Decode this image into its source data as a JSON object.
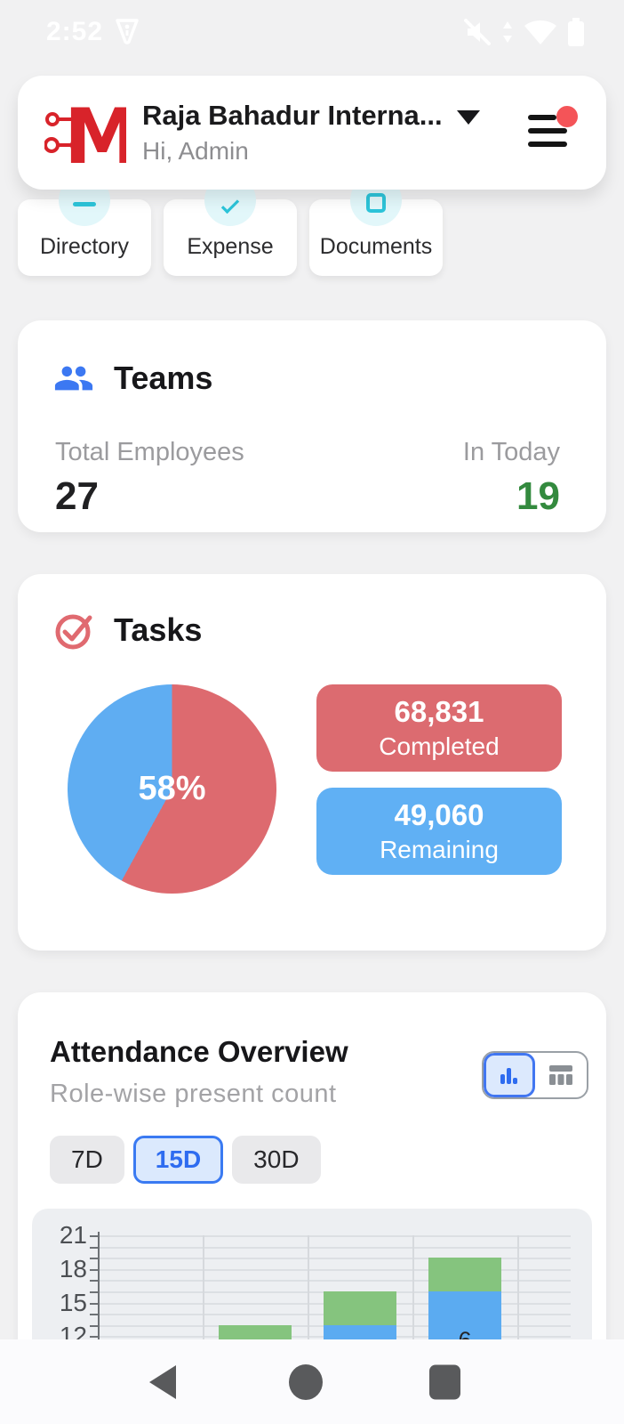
{
  "status_bar": {
    "time": "2:52"
  },
  "header": {
    "company": "Raja Bahadur Interna...",
    "greeting": "Hi, Admin"
  },
  "quick_actions": [
    {
      "label": "Directory"
    },
    {
      "label": "Expense"
    },
    {
      "label": "Documents"
    }
  ],
  "teams": {
    "title": "Teams",
    "total_label": "Total Employees",
    "total_value": "27",
    "in_today_label": "In Today",
    "in_today_value": "19"
  },
  "tasks": {
    "title": "Tasks",
    "completed_value": "68,831",
    "completed_label": "Completed",
    "remaining_value": "49,060",
    "remaining_label": "Remaining"
  },
  "attendance": {
    "title": "Attendance Overview",
    "subtitle": "Role-wise present count",
    "view_toggle": {
      "selected": "bar-chart",
      "options": [
        "bar-chart",
        "table"
      ]
    },
    "periods": [
      {
        "label": "7D",
        "selected": false
      },
      {
        "label": "15D",
        "selected": true
      },
      {
        "label": "30D",
        "selected": false
      }
    ]
  },
  "chart_data": [
    {
      "type": "pie",
      "title": "Tasks",
      "center_label": "58%",
      "slices": [
        {
          "label": "Completed",
          "value": 68831,
          "percent": 58,
          "color": "#dd6a6f"
        },
        {
          "label": "Remaining",
          "value": 49060,
          "percent": 42,
          "color": "#5fadf2"
        }
      ],
      "start_angle_deg": 0,
      "direction": "clockwise"
    },
    {
      "type": "bar",
      "stacked": true,
      "title": "Attendance Overview",
      "subtitle": "Role-wise present count",
      "period_selected": "15D",
      "y_axis": {
        "visible_major_ticks": [
          21,
          18,
          15,
          12
        ],
        "minor_step": 1,
        "visible_value_range": [
          11.9,
          21
        ]
      },
      "grid": true,
      "num_slots": 5,
      "series": [
        {
          "name": "bottom-segment",
          "color": "#5babf1",
          "segment_top_values": [
            null,
            null,
            13,
            16,
            null
          ]
        },
        {
          "name": "top-segment",
          "color": "#85c47e",
          "segment_top_values": [
            null,
            13,
            16,
            19,
            null
          ]
        }
      ],
      "bar_value_labels": [
        {
          "slot": 3,
          "text": "6",
          "at_value": 13
        }
      ],
      "clipped_at_screen_bottom": true
    }
  ],
  "icons": {
    "status_right": [
      "volume-muted-icon",
      "data-arrows-icon",
      "wifi-icon",
      "battery-icon"
    ],
    "status_left": [
      "vpn-shield-icon"
    ],
    "header": [
      "company-logo-m",
      "chevron-down-icon",
      "menu-icon-with-notification-dot"
    ],
    "cards": [
      "teams-people-icon",
      "tasks-check-circle-icon",
      "bar-chart-icon",
      "table-icon"
    ],
    "nav": [
      "nav-back-icon",
      "nav-home-icon",
      "nav-recents-icon"
    ]
  },
  "colors": {
    "brand_red": "#d8232a",
    "accent_blue": "#3c78f2",
    "pie_red": "#dd6a6f",
    "pie_blue": "#5fadf2",
    "pill_red": "#dc6b70",
    "pill_blue": "#60b0f4",
    "bar_green": "#85c47e",
    "bar_blue": "#5babf1",
    "green_text": "#338a3e",
    "cyan_icon": "#2cc4d9"
  }
}
